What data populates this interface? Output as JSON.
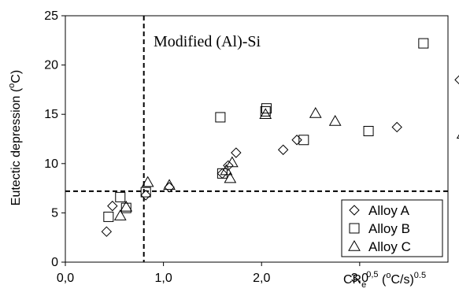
{
  "chart_data": {
    "type": "scatter",
    "ylabel_main": "Eutectic depression (",
    "ylabel_sup": "o",
    "ylabel_tail": "C)",
    "xlabel": {
      "base": "CR",
      "sub": "e",
      "sup": "0,5",
      "mid": " (",
      "sup2": "o",
      "tail": "C/s)",
      "sup3": "0.5"
    },
    "annotation": "Modified (Al)-Si",
    "xlim": [
      0.0,
      3.9
    ],
    "ylim": [
      0,
      25
    ],
    "x_ticks": [
      {
        "v": 0.0,
        "label": "0,0"
      },
      {
        "v": 1.0,
        "label": "1,0"
      },
      {
        "v": 2.0,
        "label": "2,0"
      },
      {
        "v": 3.0,
        "label": "3,0"
      }
    ],
    "y_ticks": [
      {
        "v": 0,
        "label": "0"
      },
      {
        "v": 5,
        "label": "5"
      },
      {
        "v": 10,
        "label": "10"
      },
      {
        "v": 15,
        "label": "15"
      },
      {
        "v": 20,
        "label": "20"
      },
      {
        "v": 25,
        "label": "25"
      }
    ],
    "reference_lines": {
      "vertical_x": 0.8,
      "horizontal_y": 7.2
    },
    "legend_position": "bottom-right",
    "series": [
      {
        "name": "Alloy A",
        "marker": "diamond",
        "points": [
          [
            0.42,
            3.1
          ],
          [
            0.48,
            5.7
          ],
          [
            0.82,
            6.8
          ],
          [
            1.06,
            7.6
          ],
          [
            1.6,
            9.0
          ],
          [
            1.66,
            9.8
          ],
          [
            1.74,
            11.1
          ],
          [
            2.22,
            11.4
          ],
          [
            2.36,
            12.4
          ],
          [
            3.38,
            13.7
          ],
          [
            4.02,
            18.5
          ]
        ]
      },
      {
        "name": "Alloy B",
        "marker": "square",
        "points": [
          [
            0.44,
            4.6
          ],
          [
            0.56,
            6.6
          ],
          [
            0.62,
            5.5
          ],
          [
            0.82,
            7.1
          ],
          [
            1.58,
            14.7
          ],
          [
            1.6,
            9.0
          ],
          [
            2.04,
            15.3
          ],
          [
            2.05,
            15.6
          ],
          [
            2.43,
            12.4
          ],
          [
            3.09,
            13.3
          ],
          [
            3.65,
            22.2
          ]
        ]
      },
      {
        "name": "Alloy C",
        "marker": "triangle",
        "points": [
          [
            0.56,
            4.7
          ],
          [
            0.62,
            5.6
          ],
          [
            0.84,
            8.1
          ],
          [
            1.06,
            7.8
          ],
          [
            1.64,
            9.3
          ],
          [
            1.68,
            8.5
          ],
          [
            1.7,
            10.1
          ],
          [
            2.04,
            15.0
          ],
          [
            2.55,
            15.1
          ],
          [
            2.75,
            14.3
          ],
          [
            4.05,
            13.0
          ]
        ]
      }
    ]
  }
}
